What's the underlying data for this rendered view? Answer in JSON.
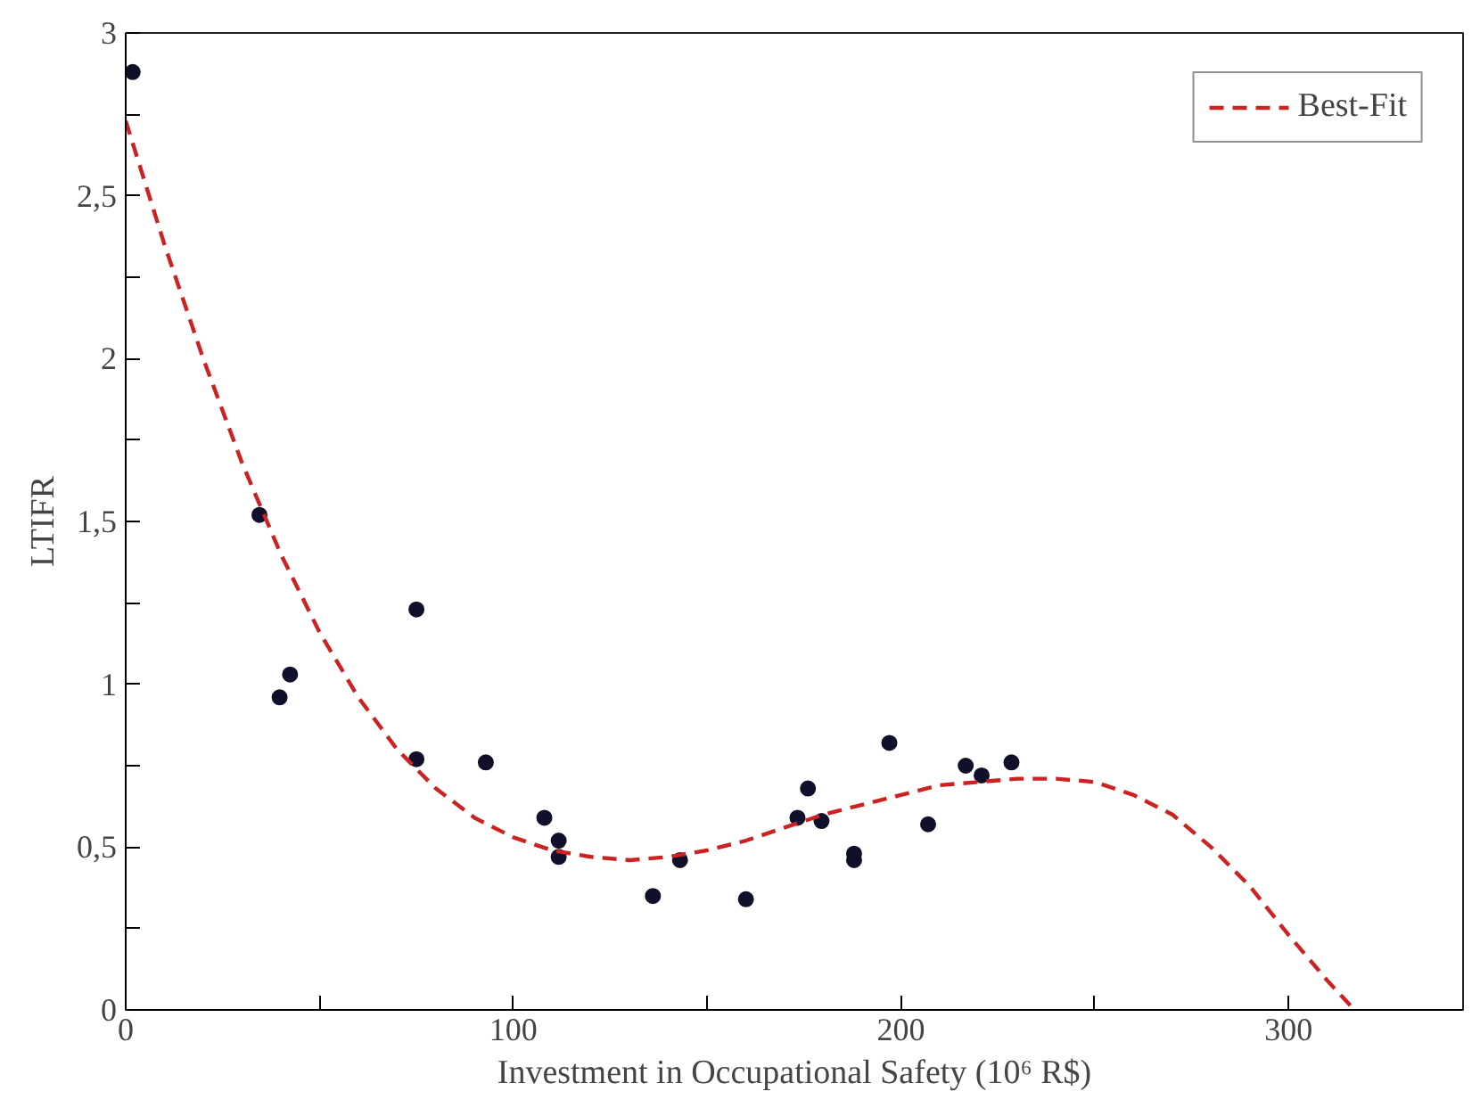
{
  "chart_data": {
    "type": "scatter",
    "xlabel": "Investment in Occupational Safety (10⁶ R$)",
    "ylabel": "LTIFR",
    "xlim": [
      0,
      345
    ],
    "ylim": [
      0,
      3
    ],
    "xticks": [
      0,
      {
        "value": 50,
        "label": null
      },
      100,
      {
        "value": 150,
        "label": null
      },
      200,
      {
        "value": 250,
        "label": null
      },
      300
    ],
    "yticks": [
      0,
      {
        "value": 0.25,
        "label": null
      },
      {
        "value": 0.5,
        "label": "0,5"
      },
      {
        "value": 0.75,
        "label": null
      },
      1,
      {
        "value": 1.25,
        "label": null
      },
      {
        "value": 1.5,
        "label": "1,5"
      },
      {
        "value": 1.75,
        "label": null
      },
      2,
      {
        "value": 2.25,
        "label": null
      },
      {
        "value": 2.5,
        "label": "2,5"
      },
      {
        "value": 2.75,
        "label": null
      },
      3
    ],
    "grid": false,
    "legend": "top right",
    "series": [
      {
        "color": "#10102a",
        "marker": "circle",
        "x": [
          1.8,
          34.5,
          39.7,
          42.4,
          75,
          75,
          92.9,
          108,
          111.7,
          111.7,
          136,
          143,
          160,
          173.3,
          176,
          179.5,
          187.9,
          187.9,
          197,
          207,
          216.7,
          220.8,
          228.5
        ],
        "values": [
          2.88,
          1.52,
          0.96,
          1.03,
          1.23,
          0.77,
          0.76,
          0.59,
          0.52,
          0.47,
          0.35,
          0.46,
          0.34,
          0.59,
          0.68,
          0.58,
          0.48,
          0.46,
          0.82,
          0.57,
          0.75,
          0.72,
          0.76
        ]
      },
      {
        "type": "line",
        "name": "Best-Fit",
        "color": "#cc2222",
        "line_style": "dashed",
        "marker": "none",
        "x": [
          0,
          10,
          20,
          30,
          40,
          50,
          60,
          70,
          80,
          90,
          100,
          110,
          120,
          130,
          140,
          150,
          160,
          170,
          180,
          190,
          200,
          210,
          220,
          230,
          240,
          250,
          260,
          270,
          280,
          290,
          300,
          310,
          317
        ],
        "values": [
          2.73,
          2.35,
          2.0,
          1.68,
          1.4,
          1.16,
          0.96,
          0.8,
          0.68,
          0.59,
          0.53,
          0.49,
          0.47,
          0.46,
          0.47,
          0.49,
          0.52,
          0.56,
          0.6,
          0.63,
          0.66,
          0.69,
          0.7,
          0.71,
          0.71,
          0.7,
          0.66,
          0.6,
          0.5,
          0.38,
          0.23,
          0.09,
          0
        ]
      }
    ]
  }
}
